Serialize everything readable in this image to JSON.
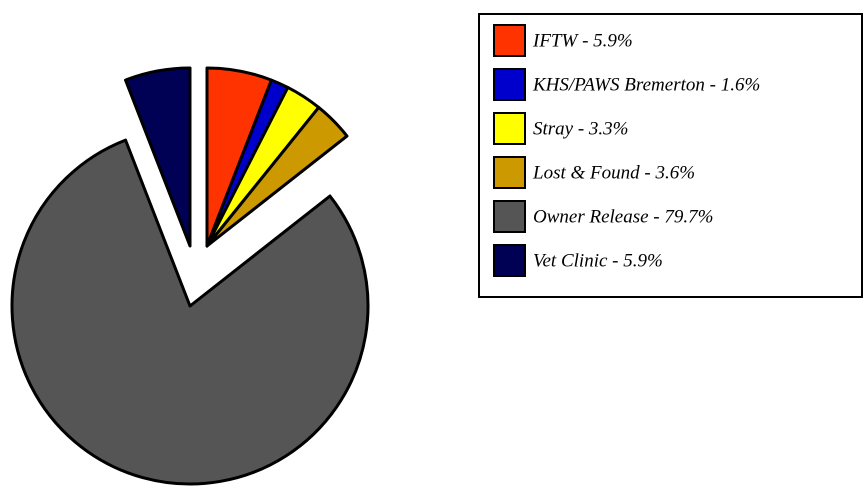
{
  "chart_data": {
    "type": "pie",
    "categories": [
      "IFTW - 5.9%",
      "KHS/PAWS Bremerton - 1.6%",
      "Stray - 3.3%",
      "Lost & Found - 3.6%",
      "Owner Release - 79.7%",
      "Vet Clinic - 5.9%"
    ],
    "values": [
      5.9,
      1.6,
      3.3,
      3.6,
      79.7,
      5.9
    ],
    "colors": [
      "#ff3300",
      "#0000cc",
      "#ffff00",
      "#cc9900",
      "#555555",
      "#000055"
    ],
    "legend": "upper right"
  }
}
